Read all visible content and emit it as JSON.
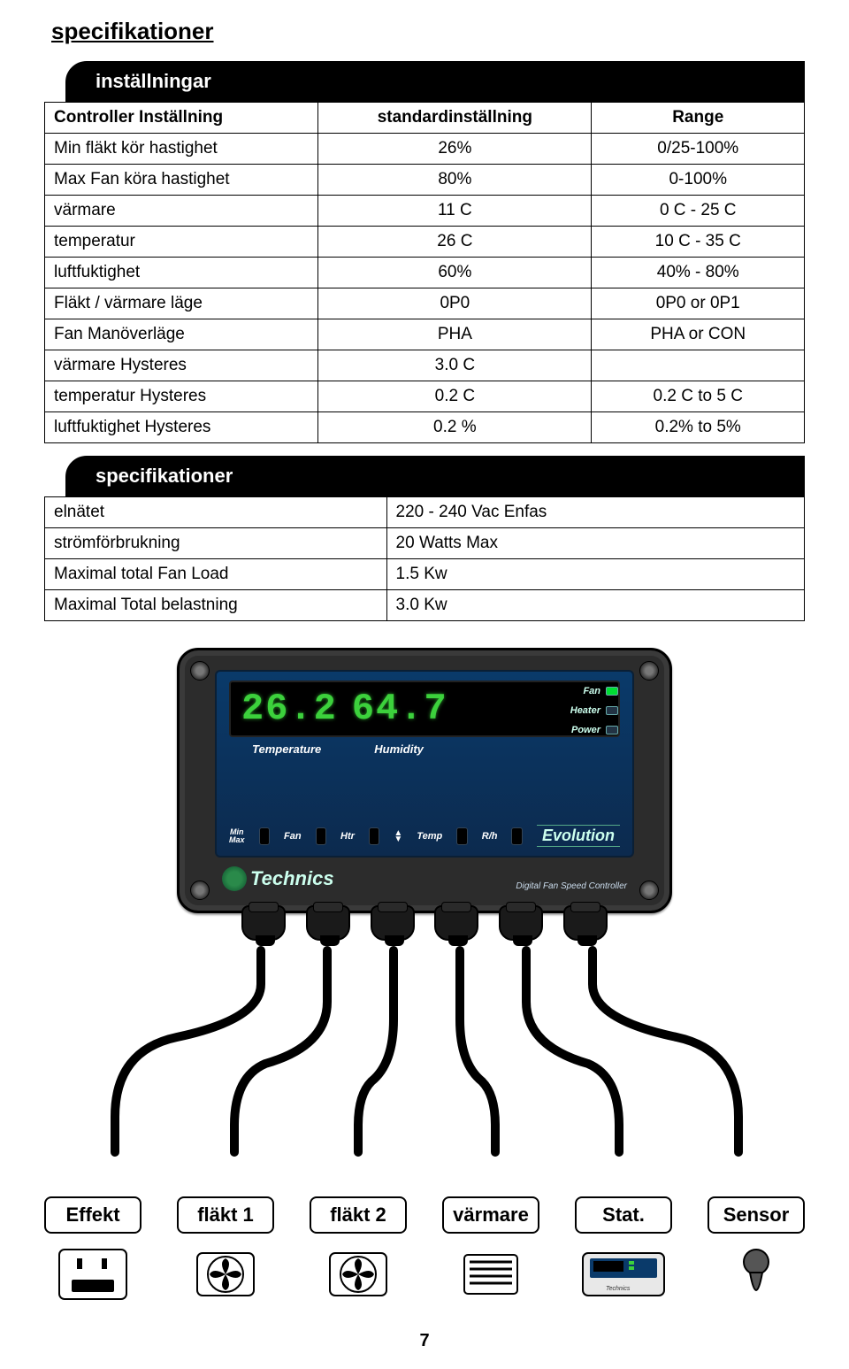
{
  "title": "specifikationer",
  "section1": {
    "header": "inställningar",
    "columns": [
      "Controller Inställning",
      "standardinställning",
      "Range"
    ],
    "rows": [
      [
        "Min fläkt kör hastighet",
        "26%",
        "0/25-100%"
      ],
      [
        "Max Fan köra hastighet",
        "80%",
        "0-100%"
      ],
      [
        "värmare",
        "11 C",
        "0 C - 25 C"
      ],
      [
        "temperatur",
        "26 C",
        "10 C - 35 C"
      ],
      [
        "luftfuktighet",
        "60%",
        "40% - 80%"
      ],
      [
        "Fläkt / värmare läge",
        "0P0",
        "0P0 or 0P1"
      ],
      [
        "Fan Manöverläge",
        "PHA",
        "PHA or CON"
      ],
      [
        "värmare Hysteres",
        "3.0 C",
        ""
      ],
      [
        "temperatur Hysteres",
        "0.2 C",
        "0.2 C to 5 C"
      ],
      [
        "luftfuktighet Hysteres",
        "0.2 %",
        "0.2% to 5%"
      ]
    ]
  },
  "section2": {
    "header": "specifikationer",
    "rows": [
      [
        "elnätet",
        "220 - 240 Vac Enfas"
      ],
      [
        "strömförbrukning",
        "20 Watts Max"
      ],
      [
        "Maximal total Fan Load",
        "1.5 Kw"
      ],
      [
        "Maximal Total belastning",
        "3.0 Kw"
      ]
    ]
  },
  "device": {
    "display_left": "26.2",
    "display_right": "64.7",
    "label_temp": "Temperature",
    "label_hum": "Humidity",
    "led_fan": "Fan",
    "led_heater": "Heater",
    "led_power": "Power",
    "btn_minmax": "Min\nMax",
    "btn_fan": "Fan",
    "btn_htr": "Htr",
    "btn_temp": "Temp",
    "btn_rh": "R/h",
    "evolution": "Evolution",
    "brand": "Technics",
    "sublabel": "Digital Fan Speed Controller"
  },
  "outputs": {
    "labels": [
      "Effekt",
      "fläkt 1",
      "fläkt 2",
      "värmare",
      "Stat.",
      "Sensor"
    ]
  },
  "page_number": "7",
  "colors": {
    "bg": "#ffffff",
    "text": "#000000",
    "header_bg": "#000000",
    "header_text": "#ffffff",
    "device_case": "#2c2c2c",
    "panel_top": "#0a3a6a",
    "panel_bottom": "#0c2a4e",
    "seg_color": "#3cd13c",
    "cable": "#000000"
  }
}
